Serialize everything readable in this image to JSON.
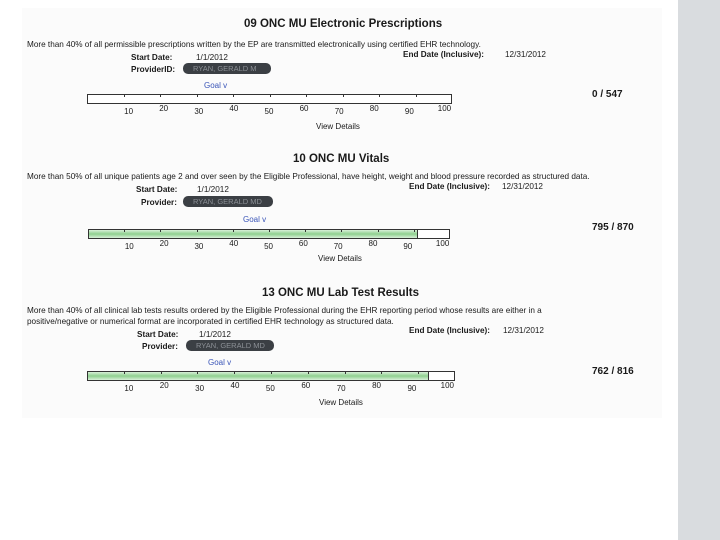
{
  "sections": [
    {
      "title": "09 ONC MU Electronic Prescriptions",
      "description": [
        "More than 40% of all permissible prescriptions written by the EP are transmitted electronically using certified EHR technology."
      ],
      "start_label": "Start Date:",
      "start_value": "1/1/2012",
      "end_label": "End Date (Inclusive):",
      "end_value": "12/31/2012",
      "provider_label": "ProviderID:",
      "provider_value": "RYAN, GERALD M",
      "goal_label": "Goal v",
      "ticks": [
        "10",
        "20",
        "30",
        "40",
        "50",
        "60",
        "70",
        "80",
        "90",
        "100"
      ],
      "progress_fraction": 0.0,
      "ratio": "0 / 547",
      "view_details": "View Details"
    },
    {
      "title": "10 ONC MU Vitals",
      "description": [
        "More than 50% of all unique patients age 2 and over seen by the Eligible Professional, have height, weight and blood pressure recorded as structured data."
      ],
      "start_label": "Start Date:",
      "start_value": "1/1/2012",
      "end_label": "End Date (Inclusive):",
      "end_value": "12/31/2012",
      "provider_label": "Provider:",
      "provider_value": "RYAN, GERALD MD",
      "goal_label": "Goal v",
      "ticks": [
        "10",
        "20",
        "30",
        "40",
        "50",
        "60",
        "70",
        "80",
        "90",
        "100"
      ],
      "progress_fraction": 0.91,
      "ratio": "795 / 870",
      "view_details": "View Details"
    },
    {
      "title": "13 ONC MU Lab Test Results",
      "description": [
        "More than 40% of all clinical lab tests results ordered by the Eligible Professional during the EHR reporting period whose results are either in a",
        "positive/negative or numerical format are incorporated in certified EHR technology as structured data."
      ],
      "start_label": "Start Date:",
      "start_value": "1/1/2012",
      "end_label": "End Date (Inclusive):",
      "end_value": "12/31/2012",
      "provider_label": "Provider:",
      "provider_value": "RYAN, GERALD MD",
      "goal_label": "Goal v",
      "ticks": [
        "10",
        "20",
        "30",
        "40",
        "50",
        "60",
        "70",
        "80",
        "90",
        "100"
      ],
      "progress_fraction": 0.93,
      "ratio": "762 / 816",
      "view_details": "View Details"
    }
  ]
}
